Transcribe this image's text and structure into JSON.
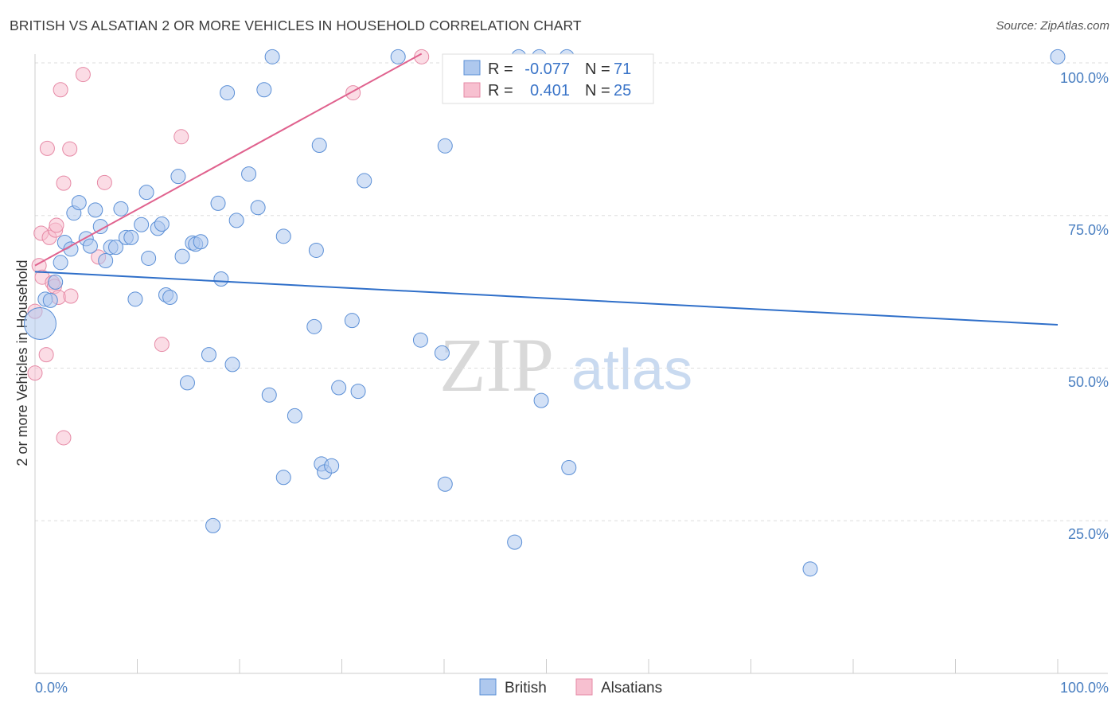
{
  "header": {
    "title": "BRITISH VS ALSATIAN 2 OR MORE VEHICLES IN HOUSEHOLD CORRELATION CHART",
    "source": "Source: ZipAtlas.com"
  },
  "watermark": {
    "zip": "ZIP",
    "atlas": "atlas"
  },
  "colors": {
    "british_fill": "#aec8ee",
    "british_stroke": "#5b8fd6",
    "british_line": "#2f6fc9",
    "alsatian_fill": "#f7c0d0",
    "alsatian_stroke": "#e68aa6",
    "alsatian_line": "#e0628e",
    "grid": "#dddddd",
    "tick_text": "#4a7fc1"
  },
  "stats_legend": {
    "rows": [
      {
        "r_label": "R =",
        "r_value": "-0.077",
        "n_label": "N =",
        "n_value": "71"
      },
      {
        "r_label": "R =",
        "r_value": "0.401",
        "n_label": "N =",
        "n_value": "25"
      }
    ]
  },
  "chart_data": {
    "type": "scatter",
    "title": "BRITISH VS ALSATIAN 2 OR MORE VEHICLES IN HOUSEHOLD CORRELATION CHART",
    "xlabel": "",
    "ylabel": "2 or more Vehicles in Household",
    "xlim": [
      0,
      100
    ],
    "ylim": [
      0,
      101.5
    ],
    "x_tick_labels": {
      "left": "0.0%",
      "right": "100.0%"
    },
    "y_ticks": [
      {
        "value": 25,
        "label": "25.0%"
      },
      {
        "value": 50,
        "label": "50.0%"
      },
      {
        "value": 75,
        "label": "75.0%"
      },
      {
        "value": 100,
        "label": "100.0%"
      }
    ],
    "x_minor_ticks": [
      10,
      20,
      30,
      40,
      50,
      60,
      70,
      80,
      90,
      100
    ],
    "legend_position": "bottom-center",
    "series": [
      {
        "name": "British",
        "color": "#aec8ee",
        "trend": {
          "x": [
            0,
            100
          ],
          "y": [
            65.8,
            57.1
          ]
        },
        "points": [
          {
            "x": 0.5,
            "y": 57.3,
            "size": "large"
          },
          {
            "x": 1.0,
            "y": 61.3
          },
          {
            "x": 1.5,
            "y": 61.1
          },
          {
            "x": 2.0,
            "y": 64.1
          },
          {
            "x": 2.5,
            "y": 67.3
          },
          {
            "x": 2.9,
            "y": 70.6
          },
          {
            "x": 3.5,
            "y": 69.5
          },
          {
            "x": 3.8,
            "y": 75.4
          },
          {
            "x": 4.3,
            "y": 77.1
          },
          {
            "x": 5.0,
            "y": 71.2
          },
          {
            "x": 5.4,
            "y": 70.0
          },
          {
            "x": 5.9,
            "y": 75.9
          },
          {
            "x": 6.4,
            "y": 73.2
          },
          {
            "x": 6.9,
            "y": 67.6
          },
          {
            "x": 7.4,
            "y": 69.8
          },
          {
            "x": 7.9,
            "y": 69.8
          },
          {
            "x": 8.4,
            "y": 76.1
          },
          {
            "x": 8.9,
            "y": 71.4
          },
          {
            "x": 9.4,
            "y": 71.4
          },
          {
            "x": 9.8,
            "y": 61.3
          },
          {
            "x": 10.4,
            "y": 73.5
          },
          {
            "x": 10.9,
            "y": 78.8
          },
          {
            "x": 11.1,
            "y": 68.0
          },
          {
            "x": 12.0,
            "y": 72.9
          },
          {
            "x": 12.4,
            "y": 73.6
          },
          {
            "x": 12.8,
            "y": 62.0
          },
          {
            "x": 13.2,
            "y": 61.6
          },
          {
            "x": 14.0,
            "y": 81.4
          },
          {
            "x": 14.4,
            "y": 68.3
          },
          {
            "x": 14.9,
            "y": 47.6
          },
          {
            "x": 15.4,
            "y": 70.5
          },
          {
            "x": 15.7,
            "y": 70.3
          },
          {
            "x": 16.2,
            "y": 70.7
          },
          {
            "x": 17.0,
            "y": 52.2
          },
          {
            "x": 17.4,
            "y": 24.2
          },
          {
            "x": 17.9,
            "y": 77.0
          },
          {
            "x": 18.2,
            "y": 64.6
          },
          {
            "x": 18.8,
            "y": 95.1
          },
          {
            "x": 19.3,
            "y": 50.6
          },
          {
            "x": 19.7,
            "y": 74.2
          },
          {
            "x": 20.9,
            "y": 81.8
          },
          {
            "x": 21.8,
            "y": 76.3
          },
          {
            "x": 22.4,
            "y": 95.6
          },
          {
            "x": 22.9,
            "y": 45.6
          },
          {
            "x": 23.2,
            "y": 101.0
          },
          {
            "x": 24.3,
            "y": 71.6
          },
          {
            "x": 24.3,
            "y": 32.1
          },
          {
            "x": 25.4,
            "y": 42.2
          },
          {
            "x": 27.3,
            "y": 56.8
          },
          {
            "x": 27.5,
            "y": 69.3
          },
          {
            "x": 27.8,
            "y": 86.5
          },
          {
            "x": 28.0,
            "y": 34.3
          },
          {
            "x": 28.3,
            "y": 33.0
          },
          {
            "x": 29.0,
            "y": 34.0
          },
          {
            "x": 29.7,
            "y": 46.8
          },
          {
            "x": 31.0,
            "y": 57.8
          },
          {
            "x": 31.6,
            "y": 46.2
          },
          {
            "x": 32.2,
            "y": 80.7
          },
          {
            "x": 35.5,
            "y": 101.0
          },
          {
            "x": 37.7,
            "y": 54.6
          },
          {
            "x": 39.8,
            "y": 52.5
          },
          {
            "x": 40.1,
            "y": 31.0
          },
          {
            "x": 40.1,
            "y": 86.4
          },
          {
            "x": 46.9,
            "y": 21.5
          },
          {
            "x": 47.3,
            "y": 101.0
          },
          {
            "x": 49.3,
            "y": 101.0
          },
          {
            "x": 49.5,
            "y": 44.7
          },
          {
            "x": 52.0,
            "y": 101.0
          },
          {
            "x": 52.2,
            "y": 33.7
          },
          {
            "x": 75.8,
            "y": 17.1
          },
          {
            "x": 100.0,
            "y": 101.0
          }
        ]
      },
      {
        "name": "Alsatians",
        "color": "#f7c0d0",
        "trend": {
          "x": [
            0,
            37.8
          ],
          "y": [
            66.8,
            101.5
          ]
        },
        "points": [
          {
            "x": 0.0,
            "y": 49.2
          },
          {
            "x": 0.0,
            "y": 59.3
          },
          {
            "x": 0.4,
            "y": 66.8
          },
          {
            "x": 0.6,
            "y": 72.1
          },
          {
            "x": 0.7,
            "y": 64.9
          },
          {
            "x": 1.1,
            "y": 52.2
          },
          {
            "x": 1.2,
            "y": 86.0
          },
          {
            "x": 1.4,
            "y": 71.4
          },
          {
            "x": 1.7,
            "y": 64.0
          },
          {
            "x": 1.9,
            "y": 63.4
          },
          {
            "x": 2.0,
            "y": 72.6
          },
          {
            "x": 2.1,
            "y": 73.4
          },
          {
            "x": 2.3,
            "y": 61.6
          },
          {
            "x": 2.5,
            "y": 95.6
          },
          {
            "x": 2.8,
            "y": 38.6
          },
          {
            "x": 2.8,
            "y": 80.3
          },
          {
            "x": 3.4,
            "y": 85.9
          },
          {
            "x": 3.5,
            "y": 61.8
          },
          {
            "x": 4.7,
            "y": 98.1
          },
          {
            "x": 6.2,
            "y": 68.2
          },
          {
            "x": 6.8,
            "y": 80.4
          },
          {
            "x": 12.4,
            "y": 53.9
          },
          {
            "x": 14.3,
            "y": 87.9
          },
          {
            "x": 31.1,
            "y": 95.1
          },
          {
            "x": 37.8,
            "y": 101.0
          }
        ]
      }
    ]
  },
  "bottom_legend": {
    "items": [
      {
        "label": "British"
      },
      {
        "label": "Alsatians"
      }
    ]
  }
}
